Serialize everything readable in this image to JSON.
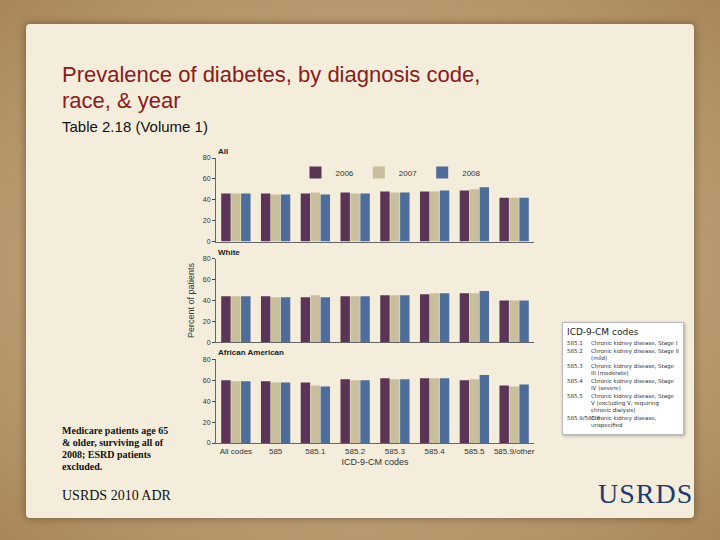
{
  "slide": {
    "title": "Prevalence of diabetes, by diagnosis code, race, & year",
    "subtitle": "Table 2.18 (Volume 1)",
    "note": "Medicare patients age 65 & older, surviving all of 2008; ESRD patients excluded.",
    "source": "USRDS 2010 ADR",
    "logo": "USRDS",
    "codes_box": {
      "title": "ICD-9-CM codes",
      "rows": [
        [
          "585.1",
          "Chronic kidney disease, Stage I"
        ],
        [
          "585.2",
          "Chronic kidney disease, Stage II (mild)"
        ],
        [
          "585.3",
          "Chronic kidney disease, Stage III (moderate)"
        ],
        [
          "585.4",
          "Chronic kidney disease, Stage IV (severe)"
        ],
        [
          "585.5",
          "Chronic kidney disease, Stage V (excluding V, requiring chronic dialysis)"
        ],
        [
          "585.9/585.6",
          "Chronic kidney disease, unspecified"
        ]
      ]
    }
  },
  "chart_data": [
    {
      "type": "bar",
      "title": "All",
      "categories": [
        "All codes",
        "585",
        "585.1",
        "585.2",
        "585.3",
        "585.4",
        "585.5",
        "585.9/other"
      ],
      "series": [
        {
          "name": "2006",
          "color": "#5b3556",
          "values": [
            46,
            46,
            46,
            47,
            48,
            48,
            49,
            42
          ]
        },
        {
          "name": "2007",
          "color": "#c9bf9c",
          "values": [
            46,
            45,
            47,
            46,
            47,
            48,
            50,
            42
          ]
        },
        {
          "name": "2008",
          "color": "#4f6d9a",
          "values": [
            46,
            45,
            45,
            46,
            47,
            49,
            52,
            42
          ]
        }
      ],
      "ylim": [
        0,
        80
      ],
      "yticks": [
        0,
        20,
        40,
        60,
        80
      ],
      "grid": false,
      "legend": "top",
      "tick_labels": "y"
    },
    {
      "type": "bar",
      "title": "White",
      "ylabel": "Percent of patients",
      "categories": [
        "All codes",
        "585",
        "585.1",
        "585.2",
        "585.3",
        "585.4",
        "585.5",
        "585.9/other"
      ],
      "series": [
        {
          "name": "2006",
          "color": "#5b3556",
          "values": [
            44,
            44,
            43,
            44,
            45,
            46,
            47,
            40
          ]
        },
        {
          "name": "2007",
          "color": "#c9bf9c",
          "values": [
            44,
            43,
            45,
            44,
            45,
            47,
            47,
            40
          ]
        },
        {
          "name": "2008",
          "color": "#4f6d9a",
          "values": [
            44,
            43,
            43,
            44,
            45,
            47,
            49,
            40
          ]
        }
      ],
      "ylim": [
        0,
        80
      ],
      "yticks": [
        0,
        20,
        40,
        60,
        80
      ],
      "grid": false,
      "tick_labels": "y"
    },
    {
      "type": "bar",
      "title": "African American",
      "xlabel": "ICD-9-CM codes",
      "categories": [
        "All codes",
        "585",
        "585.1",
        "585.2",
        "585.3",
        "585.4",
        "585.5",
        "585.9/other"
      ],
      "series": [
        {
          "name": "2006",
          "color": "#5b3556",
          "values": [
            60,
            59,
            58,
            61,
            62,
            62,
            60,
            55
          ]
        },
        {
          "name": "2007",
          "color": "#c9bf9c",
          "values": [
            59,
            58,
            55,
            60,
            61,
            62,
            61,
            54
          ]
        },
        {
          "name": "2008",
          "color": "#4f6d9a",
          "values": [
            59,
            58,
            54,
            60,
            61,
            62,
            65,
            56
          ]
        }
      ],
      "ylim": [
        0,
        80
      ],
      "yticks": [
        0,
        20,
        40,
        60,
        80
      ],
      "grid": false
    }
  ]
}
